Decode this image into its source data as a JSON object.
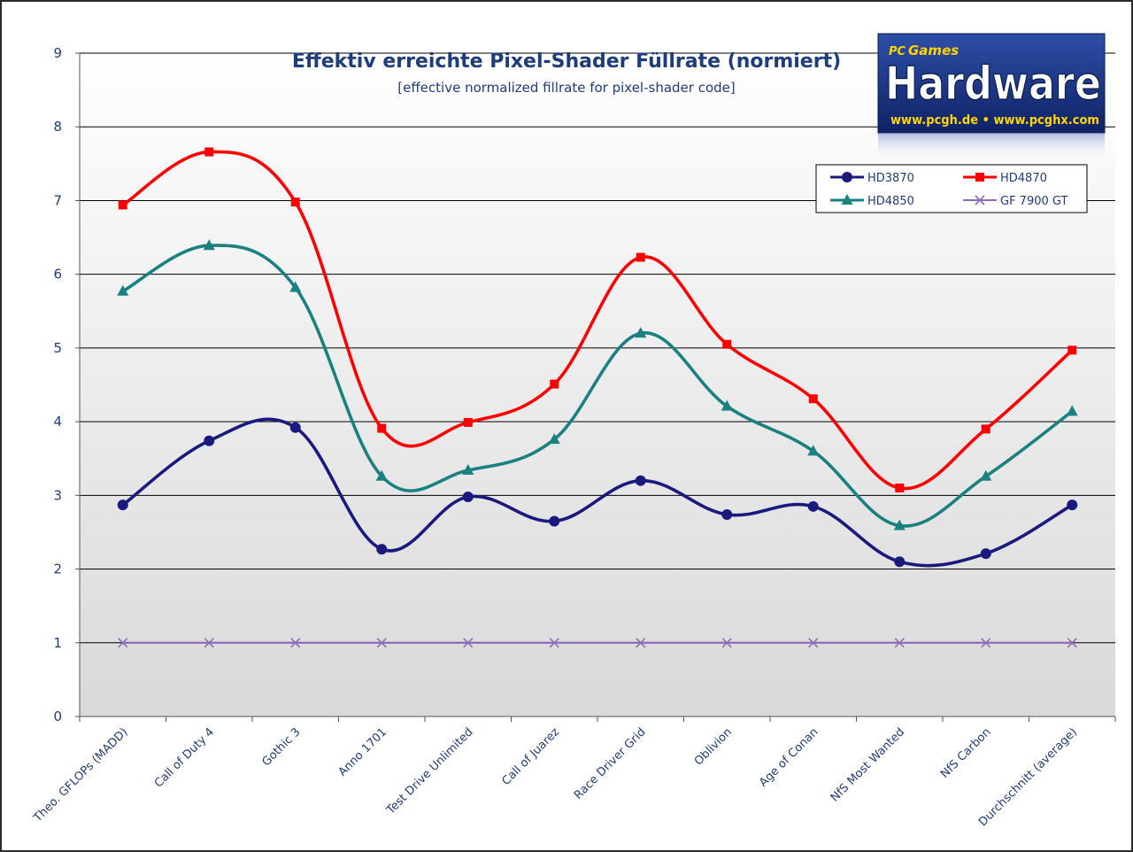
{
  "chart_data": {
    "type": "line",
    "title": "Effektiv erreichte Pixel-Shader Füllrate (normiert)",
    "subtitle": "[effective normalized fillrate for pixel-shader code]",
    "xlabel": "",
    "ylabel": "",
    "ylim": [
      0,
      9
    ],
    "yticks": [
      "0",
      "1",
      "2",
      "3",
      "4",
      "5",
      "6",
      "7",
      "8",
      "9"
    ],
    "grid": true,
    "smooth": true,
    "legend_position": "top-right",
    "categories": [
      "Theo. GFLOPs (MADD)",
      "Call of Duty 4",
      "Gothic 3",
      "Anno 1701",
      "Test Drive Unlimited",
      "Call of Juarez",
      "Race Driver Grid",
      "Oblivion",
      "Age of Conan",
      "NfS Most Wanted",
      "NfS Carbon",
      "Durchschnitt (average)"
    ],
    "series": [
      {
        "name": "HD3870",
        "color": "#1a1a7e",
        "marker": "circle",
        "values": [
          2.87,
          3.74,
          3.92,
          2.27,
          2.98,
          2.65,
          3.2,
          2.74,
          2.85,
          2.1,
          2.21,
          2.87
        ]
      },
      {
        "name": "HD4870",
        "color": "#ff0000",
        "marker": "square",
        "values": [
          6.94,
          7.66,
          6.98,
          3.91,
          3.99,
          4.51,
          6.23,
          5.05,
          4.31,
          3.1,
          3.9,
          4.97
        ]
      },
      {
        "name": "HD4850",
        "color": "#1a8080",
        "marker": "triangle",
        "values": [
          5.77,
          6.39,
          5.82,
          3.26,
          3.34,
          3.76,
          5.2,
          4.21,
          3.6,
          2.59,
          3.26,
          4.14
        ]
      },
      {
        "name": "GF 7900  GT",
        "color": "#8c6cb4",
        "marker": "x",
        "values": [
          1,
          1,
          1,
          1,
          1,
          1,
          1,
          1,
          1,
          1,
          1,
          1
        ]
      }
    ]
  },
  "logo": {
    "top": "PC",
    "top2": "Games",
    "word": "Hardware",
    "url": "www.pcgh.de • www.pcghx.com"
  }
}
